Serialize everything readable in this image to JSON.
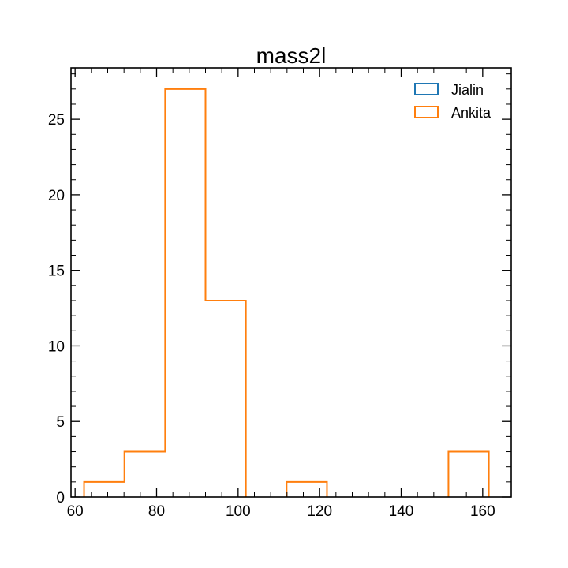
{
  "chart_data": {
    "type": "histogram",
    "title": "mass2l",
    "xlabel": "",
    "ylabel": "",
    "xlim": [
      59,
      167
    ],
    "ylim": [
      0,
      28.4
    ],
    "x_ticks": [
      60,
      80,
      100,
      120,
      140,
      160
    ],
    "y_ticks": [
      0,
      5,
      10,
      15,
      20,
      25
    ],
    "x_tick_labels": [
      "60",
      "80",
      "100",
      "120",
      "140",
      "160"
    ],
    "y_tick_labels": [
      "0",
      "5",
      "10",
      "15",
      "20",
      "25"
    ],
    "bin_edges": [
      62.2,
      72.1,
      82.1,
      92.0,
      101.9,
      111.9,
      121.8,
      131.7,
      141.7,
      151.6,
      161.5
    ],
    "series": [
      {
        "name": "Jialin",
        "color": "#1f77b4",
        "counts": [
          0,
          0,
          0,
          0,
          0,
          0,
          0,
          0,
          0,
          0
        ]
      },
      {
        "name": "Ankita",
        "color": "#ff7f0e",
        "counts": [
          1,
          3,
          27,
          13,
          0,
          1,
          0,
          0,
          0,
          3
        ]
      }
    ],
    "legend_position": "top-right",
    "grid": false
  }
}
